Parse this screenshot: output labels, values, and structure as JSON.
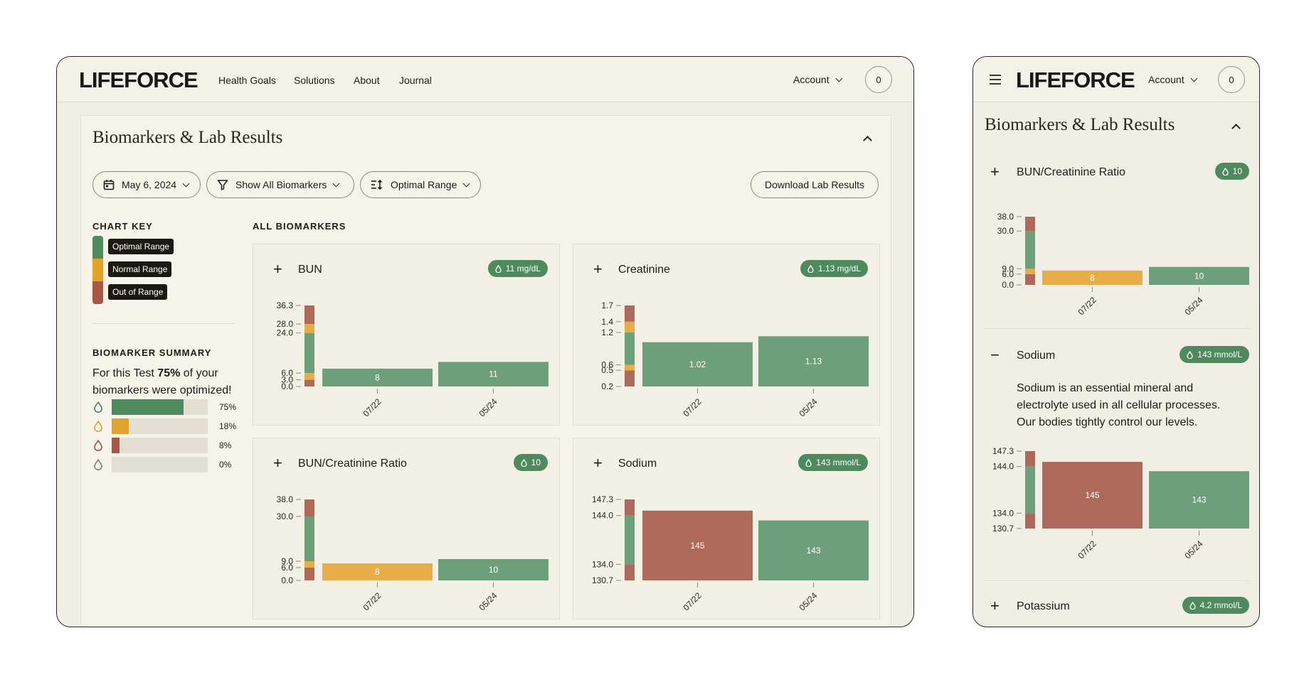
{
  "brand": "LIFEFORCE",
  "nav": [
    "Health Goals",
    "Solutions",
    "About",
    "Journal"
  ],
  "account_label": "Account",
  "cart_count": "0",
  "panel_title": "Biomarkers & Lab Results",
  "filters": {
    "date": "May 6, 2024",
    "biomarkers": "Show All Biomarkers",
    "range": "Optimal Range"
  },
  "download_label": "Download Lab Results",
  "chart_key": {
    "title": "CHART KEY",
    "items": [
      "Optimal Range",
      "Normal Range",
      "Out of Range"
    ]
  },
  "all_biomarkers_title": "ALL BIOMARKERS",
  "summary": {
    "title": "BIOMARKER SUMMARY",
    "text_pre": "For this Test ",
    "text_pct": "75%",
    "text_post": " of your biomarkers were optimized!",
    "rows": [
      {
        "pct": "75%",
        "value": 0.75,
        "color": "#4f8a5e"
      },
      {
        "pct": "18%",
        "value": 0.18,
        "color": "#e3a22e"
      },
      {
        "pct": "8%",
        "value": 0.08,
        "color": "#a85646"
      },
      {
        "pct": "0%",
        "value": 0,
        "color": "#8a8478"
      }
    ]
  },
  "colors": {
    "optimal": "#6d9f7b",
    "normal": "#e6ad48",
    "out": "#ad6a5a"
  },
  "sodium_desc": "Sodium is an essential mineral and electrolyte used in all cellular processes. Our bodies tightly control our levels.",
  "potassium": {
    "name": "Potassium",
    "badge": "4.2 mmol/L"
  },
  "chart_data": [
    {
      "id": "bun",
      "type": "bar",
      "name": "BUN",
      "badge": "11 mg/dL",
      "ticks": [
        "36.3",
        "28.0",
        "24.0",
        "6.0",
        "3.0",
        "0.0"
      ],
      "tick_values": [
        36.3,
        28.0,
        24.0,
        6.0,
        3.0,
        0.0
      ],
      "ylim": [
        0,
        36.3
      ],
      "bands": [
        [
          0,
          3,
          "out"
        ],
        [
          3,
          6,
          "normal"
        ],
        [
          6,
          24,
          "optimal"
        ],
        [
          24,
          28,
          "normal"
        ],
        [
          28,
          36.3,
          "out"
        ]
      ],
      "categories": [
        "07/22",
        "05/24"
      ],
      "values": [
        8,
        11
      ],
      "labels": [
        "8",
        "11"
      ],
      "bar_status": [
        "optimal",
        "optimal"
      ]
    },
    {
      "id": "creat",
      "type": "bar",
      "name": "Creatinine",
      "badge": "1.13 mg/dL",
      "ticks": [
        "1.7",
        "1.4",
        "1.2",
        "0.6",
        "0.5",
        "0.2"
      ],
      "tick_values": [
        1.7,
        1.4,
        1.2,
        0.6,
        0.5,
        0.2
      ],
      "ylim": [
        0.2,
        1.7
      ],
      "bands": [
        [
          0.2,
          0.5,
          "out"
        ],
        [
          0.5,
          0.6,
          "normal"
        ],
        [
          0.6,
          1.2,
          "optimal"
        ],
        [
          1.2,
          1.4,
          "normal"
        ],
        [
          1.4,
          1.7,
          "out"
        ]
      ],
      "categories": [
        "07/22",
        "05/24"
      ],
      "values": [
        1.02,
        1.13
      ],
      "labels": [
        "1.02",
        "1.13"
      ],
      "bar_status": [
        "optimal",
        "optimal"
      ]
    },
    {
      "id": "ratio",
      "type": "bar",
      "name": "BUN/Creatinine Ratio",
      "badge": "10",
      "ticks": [
        "38.0",
        "30.0",
        "9.0",
        "6.0",
        "0.0"
      ],
      "tick_values": [
        38,
        30,
        9,
        6,
        0
      ],
      "ylim": [
        0,
        38
      ],
      "bands": [
        [
          0,
          6,
          "out"
        ],
        [
          6,
          9,
          "normal"
        ],
        [
          9,
          30,
          "optimal"
        ],
        [
          30,
          38,
          "out"
        ]
      ],
      "categories": [
        "07/22",
        "05/24"
      ],
      "values": [
        8,
        10
      ],
      "labels": [
        "8",
        "10"
      ],
      "bar_status": [
        "normal",
        "optimal"
      ]
    },
    {
      "id": "sodium",
      "type": "bar",
      "name": "Sodium",
      "badge": "143 mmol/L",
      "ticks": [
        "147.3",
        "144.0",
        "134.0",
        "130.7"
      ],
      "tick_values": [
        147.3,
        144,
        134,
        130.7
      ],
      "ylim": [
        130.7,
        147.3
      ],
      "bands": [
        [
          130.7,
          134,
          "out"
        ],
        [
          134,
          144,
          "optimal"
        ],
        [
          144,
          147.3,
          "out"
        ]
      ],
      "categories": [
        "07/22",
        "05/24"
      ],
      "values": [
        145,
        143
      ],
      "labels": [
        "145",
        "143"
      ],
      "bar_status": [
        "out",
        "optimal"
      ]
    }
  ]
}
